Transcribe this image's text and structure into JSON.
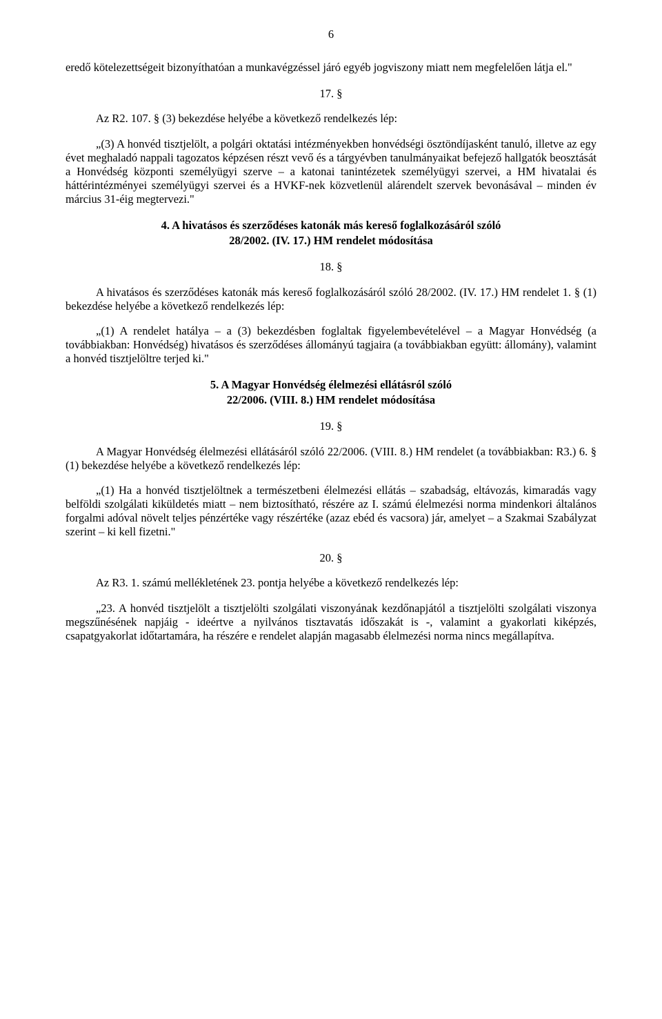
{
  "pageNumber": "6",
  "p1": "eredő kötelezettségeit bizonyíthatóan a munkavégzéssel járó egyéb jogviszony miatt nem megfelelően látja el.\"",
  "s17": "17. §",
  "p2": "Az R2. 107. § (3) bekezdése helyébe a következő rendelkezés lép:",
  "p3": "„(3) A honvéd tisztjelölt, a polgári oktatási intézményekben honvédségi ösztöndíjasként tanuló, illetve az egy évet meghaladó nappali tagozatos képzésen részt vevő és a tárgyévben tanulmányaikat befejező hallgatók beosztását a Honvédség központi személyügyi szerve – a katonai tanintézetek személyügyi szervei, a HM hivatalai és háttérintézményei személyügyi szervei és a HVKF-nek közvetlenül alárendelt szervek bevonásával – minden év március 31-éig megtervezi.\"",
  "h4a": "4. A hivatásos és szerződéses katonák más kereső foglalkozásáról szóló",
  "h4b": "28/2002. (IV. 17.) HM rendelet módosítása",
  "s18": "18. §",
  "p4": "A hivatásos és szerződéses katonák más kereső foglalkozásáról szóló 28/2002. (IV. 17.) HM rendelet 1. § (1) bekezdése helyébe a következő rendelkezés lép:",
  "p5": "„(1) A rendelet hatálya – a (3) bekezdésben foglaltak figyelembevételével – a Magyar Honvédség (a továbbiakban: Honvédség) hivatásos és szerződéses állományú tagjaira (a továbbiakban együtt: állomány), valamint a honvéd tisztjelöltre terjed ki.\"",
  "h5a": "5. A Magyar Honvédség élelmezési ellátásról szóló",
  "h5b": "22/2006. (VIII. 8.) HM rendelet módosítása",
  "s19": "19. §",
  "p6": "A Magyar Honvédség élelmezési ellátásáról szóló 22/2006. (VIII. 8.) HM rendelet (a továbbiakban: R3.) 6. § (1) bekezdése helyébe a következő rendelkezés lép:",
  "p7": "„(1) Ha a honvéd tisztjelöltnek a természetbeni élelmezési ellátás – szabadság, eltávozás, kimaradás vagy belföldi szolgálati kiküldetés miatt – nem biztosítható, részére az I. számú élelmezési norma mindenkori általános forgalmi adóval növelt teljes pénzértéke vagy részértéke (azaz ebéd és vacsora) jár, amelyet – a Szakmai Szabályzat szerint – ki kell fizetni.\"",
  "s20": "20. §",
  "p8": "Az R3. 1. számú mellékletének 23. pontja helyébe a következő rendelkezés lép:",
  "p9": "„23. A honvéd tisztjelölt a tisztjelölti szolgálati viszonyának kezdőnapjától a tisztjelölti szolgálati viszonya megszűnésének napjáig - ideértve a nyilvános tisztavatás időszakát is -, valamint a gyakorlati kiképzés, csapatgyakorlat időtartamára, ha részére e rendelet alapján magasabb élelmezési norma nincs megállapítva."
}
